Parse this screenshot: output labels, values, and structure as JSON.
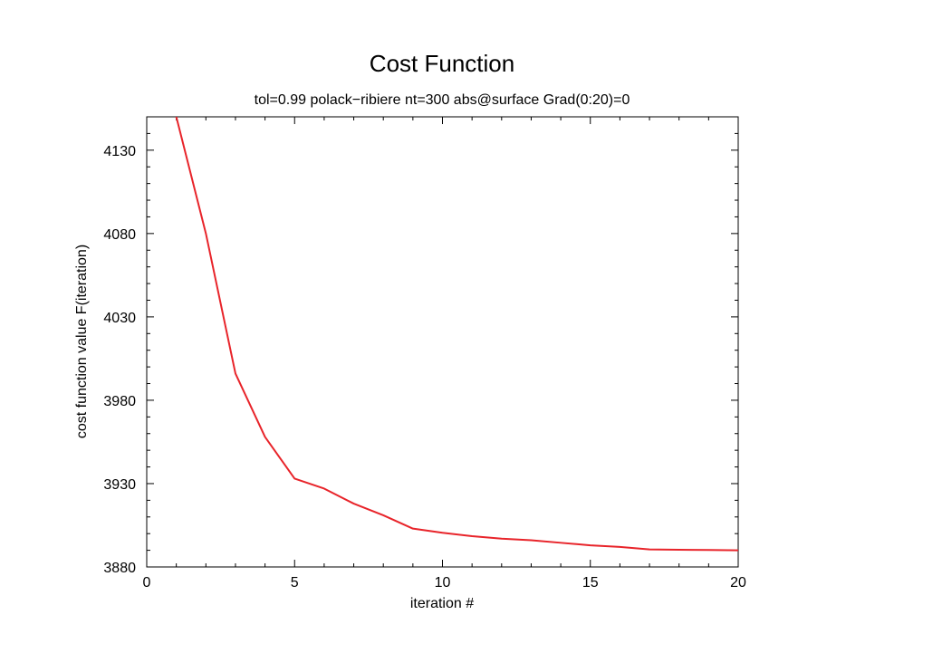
{
  "chart_data": {
    "type": "line",
    "title": "Cost Function",
    "subtitle": "tol=0.99 polack−ribiere nt=300 abs@surface Grad(0:20)=0",
    "xlabel": "iteration #",
    "ylabel": "cost function value F(iteration)",
    "xlim": [
      0,
      20
    ],
    "ylim": [
      3880,
      4150
    ],
    "x_ticks": [
      0,
      5,
      10,
      15,
      20
    ],
    "y_ticks": [
      3880,
      3930,
      3980,
      4030,
      4080,
      4130
    ],
    "x_minor_step": 1,
    "y_minor_step": 10,
    "grid": false,
    "line_color": "#e8242a",
    "series": [
      {
        "x": [
          1,
          2,
          3,
          4,
          5,
          6,
          7,
          8,
          9,
          10,
          11,
          12,
          13,
          14,
          15,
          16,
          17,
          18,
          19,
          20
        ],
        "y": [
          4150,
          4080,
          3996,
          3958,
          3933,
          3927,
          3918,
          3911,
          3903,
          3900.5,
          3898.5,
          3897,
          3896,
          3894.5,
          3893,
          3892,
          3890.5,
          3890.3,
          3890.2,
          3890
        ]
      }
    ]
  }
}
